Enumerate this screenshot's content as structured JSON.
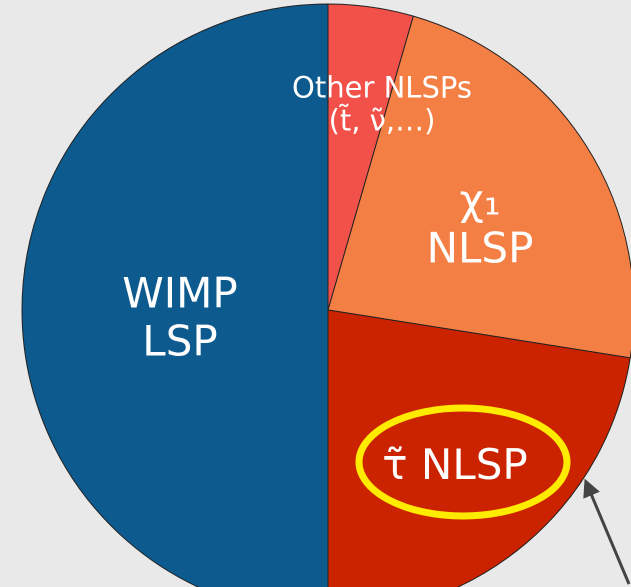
{
  "chart_data": {
    "type": "pie",
    "categories": [
      "Other NLSPs\n(t̃, ν̃,…)",
      "χ₁ NLSP",
      "τ̃ NLSP",
      "WIMP\nLSP"
    ],
    "values": [
      4.5,
      23,
      22.5,
      50
    ],
    "colors": [
      "#f2514a",
      "#f47f45",
      "#cb2200",
      "#0c5a8e"
    ]
  }
}
